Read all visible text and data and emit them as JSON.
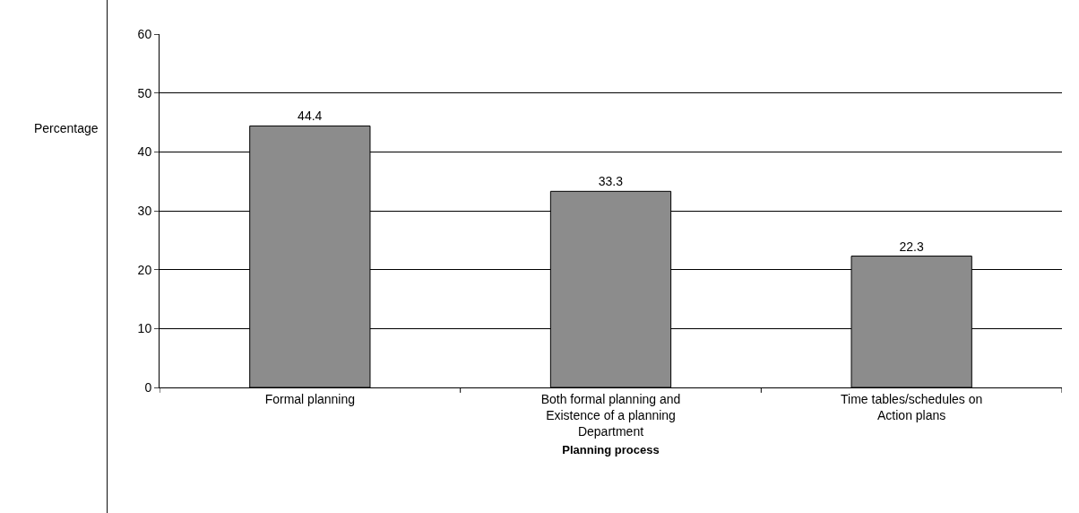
{
  "chart_data": {
    "type": "bar",
    "xlabel": "Planning process",
    "ylabel": "Percentage",
    "categories": [
      "Formal planning",
      "Both formal planning and Existence of a planning Department",
      "Time tables/schedules on Action plans"
    ],
    "values": [
      44.4,
      33.3,
      22.3
    ],
    "color": "#8c8c8c",
    "data_labels": true,
    "ylim": [
      0,
      60
    ],
    "yticks": [
      0,
      10,
      20,
      30,
      40,
      50,
      60
    ],
    "grid": "y"
  }
}
